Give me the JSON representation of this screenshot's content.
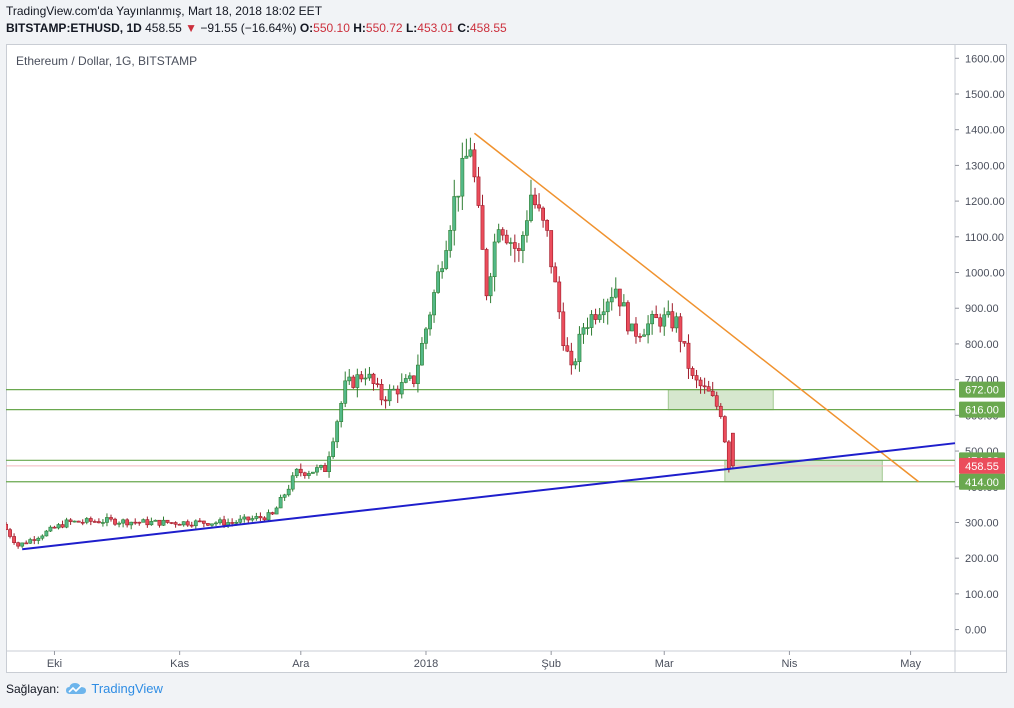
{
  "header": {
    "published": "TradingView.com'da Yayınlanmış, Mart 18, 2018 18:02 EET",
    "symbol": "BITSTAMP:ETHUSD, 1D",
    "last": "458.55",
    "change": "−91.55 (−16.64%)",
    "o_label": "O:",
    "o_val": "550.10",
    "h_label": "H:",
    "h_val": "550.72",
    "l_label": "L:",
    "l_val": "453.01",
    "c_label": "C:",
    "c_val": "458.55"
  },
  "legend": "Ethereum / Dollar, 1G, BITSTAMP",
  "footer": {
    "label": "Sağlayan:",
    "brand": "TradingView"
  },
  "colors": {
    "up": "#26a69a",
    "down": "#ef5350",
    "upFill": "#53b987",
    "downFill": "#eb4d5c",
    "trendDown": "#f0922e",
    "trendUp": "#1e1ecc",
    "zone": "#6aa84f"
  },
  "chart_data": {
    "type": "candlestick",
    "title": "Ethereum / Dollar, 1G, BITSTAMP",
    "x_ticks": [
      "Eki",
      "Kas",
      "Ara",
      "2018",
      "Şub",
      "Mar",
      "Nis",
      "May"
    ],
    "x_tick_dates": [
      "2017-10-01",
      "2017-11-01",
      "2017-12-01",
      "2018-01-01",
      "2018-02-01",
      "2018-03-01",
      "2018-04-01",
      "2018-05-01"
    ],
    "x_range": [
      "2017-09-19",
      "2018-05-12"
    ],
    "ylim": [
      -60,
      1640
    ],
    "y_ticks": [
      0,
      100,
      200,
      300,
      400,
      500,
      600,
      700,
      800,
      900,
      1000,
      1100,
      1200,
      1300,
      1400,
      1500,
      1600
    ],
    "y_tick_labels": [
      "0.00",
      "100.00",
      "200.00",
      "300.00",
      "400.00",
      "500.00",
      "600.00",
      "700.00",
      "800.00",
      "900.00",
      "1000.00",
      "1100.00",
      "1200.00",
      "1300.00",
      "1400.00",
      "1500.00",
      "1600.00"
    ],
    "price_tags": [
      {
        "value": 672,
        "label": "672.00",
        "color": "#6aa84f"
      },
      {
        "value": 616,
        "label": "616.00",
        "color": "#6aa84f"
      },
      {
        "value": 474,
        "label": "474.00",
        "color": "#6aa84f"
      },
      {
        "value": 458.55,
        "label": "458.55",
        "color": "#eb4d5c"
      },
      {
        "value": 414,
        "label": "414.00",
        "color": "#6aa84f"
      }
    ],
    "horizontal_lines": [
      672,
      616,
      474,
      414
    ],
    "zones": [
      {
        "x0": "2018-03-02",
        "x1": "2018-03-28",
        "y0": 616,
        "y1": 672
      },
      {
        "x0": "2018-03-16",
        "x1": "2018-04-24",
        "y0": 414,
        "y1": 474
      }
    ],
    "trendlines": [
      {
        "name": "",
        "color": "#f0922e",
        "from": {
          "date": "2018-01-13",
          "value": 1390
        },
        "to": {
          "date": "2018-05-03",
          "value": 414
        }
      },
      {
        "name": "",
        "color": "#1e1ecc",
        "from": {
          "date": "2017-09-23",
          "value": 225
        },
        "to": {
          "date": "2018-05-12",
          "value": 522
        }
      }
    ],
    "waypoints": [
      [
        "2017-09-19",
        295
      ],
      [
        "2017-09-23",
        235
      ],
      [
        "2017-10-05",
        300
      ],
      [
        "2017-10-15",
        305
      ],
      [
        "2017-10-25",
        300
      ],
      [
        "2017-11-05",
        300
      ],
      [
        "2017-11-15",
        300
      ],
      [
        "2017-11-25",
        320
      ],
      [
        "2017-12-01",
        440
      ],
      [
        "2017-12-08",
        450
      ],
      [
        "2017-12-13",
        680
      ],
      [
        "2017-12-18",
        720
      ],
      [
        "2017-12-22",
        650
      ],
      [
        "2017-12-30",
        700
      ],
      [
        "2018-01-04",
        940
      ],
      [
        "2018-01-09",
        1200
      ],
      [
        "2018-01-13",
        1360
      ],
      [
        "2018-01-17",
        950
      ],
      [
        "2018-01-20",
        1150
      ],
      [
        "2018-01-25",
        1050
      ],
      [
        "2018-01-28",
        1220
      ],
      [
        "2018-02-01",
        1100
      ],
      [
        "2018-02-05",
        820
      ],
      [
        "2018-02-07",
        720
      ],
      [
        "2018-02-10",
        850
      ],
      [
        "2018-02-18",
        960
      ],
      [
        "2018-02-22",
        830
      ],
      [
        "2018-03-01",
        870
      ],
      [
        "2018-03-05",
        860
      ],
      [
        "2018-03-09",
        700
      ],
      [
        "2018-03-13",
        660
      ],
      [
        "2018-03-16",
        610
      ],
      [
        "2018-03-18",
        458.55
      ]
    ],
    "last_candle": {
      "date": "2018-03-18",
      "open": 550.1,
      "high": 550.72,
      "low": 453.01,
      "close": 458.55
    }
  }
}
